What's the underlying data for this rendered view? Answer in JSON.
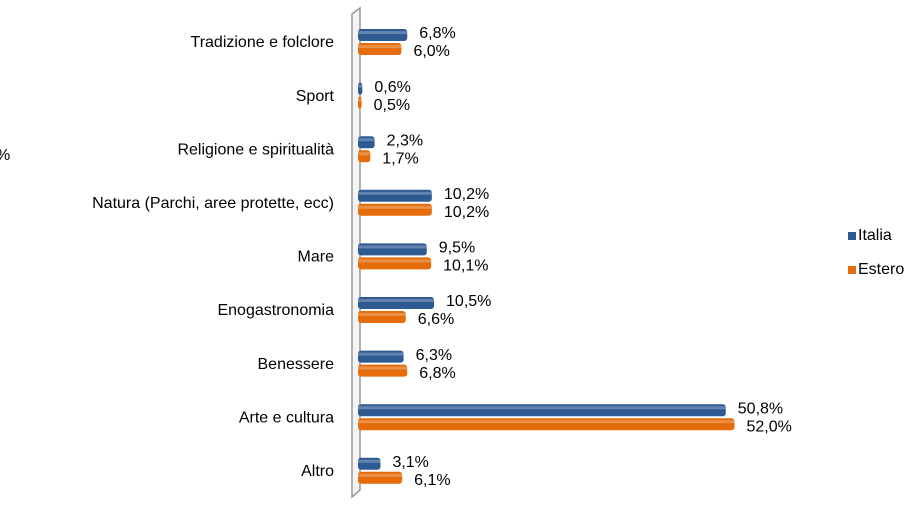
{
  "chart_data": {
    "type": "bar",
    "orientation": "horizontal",
    "annotation": "%",
    "categories": [
      "Tradizione e folclore",
      "Sport",
      "Religione e spiritualità",
      "Natura (Parchi, aree protette, ecc)",
      "Mare",
      "Enogastronomia",
      "Benessere",
      "Arte e cultura",
      "Altro"
    ],
    "series": [
      {
        "name": "Italia",
        "color": "#2e5a92",
        "values": [
          6.8,
          0.6,
          2.3,
          10.2,
          9.5,
          10.5,
          6.3,
          50.8,
          3.1
        ],
        "value_labels": [
          "6,8%",
          "0,6%",
          "2,3%",
          "10,2%",
          "9,5%",
          "10,5%",
          "6,3%",
          "50,8%",
          "3,1%"
        ]
      },
      {
        "name": "Estero",
        "color": "#e46c0a",
        "values": [
          6.0,
          0.5,
          1.7,
          10.2,
          10.1,
          6.6,
          6.8,
          52.0,
          6.1
        ],
        "value_labels": [
          "6,0%",
          "0,5%",
          "1,7%",
          "10,2%",
          "10,1%",
          "6,6%",
          "6,8%",
          "52,0%",
          "6,1%"
        ]
      }
    ],
    "legend": "right"
  }
}
